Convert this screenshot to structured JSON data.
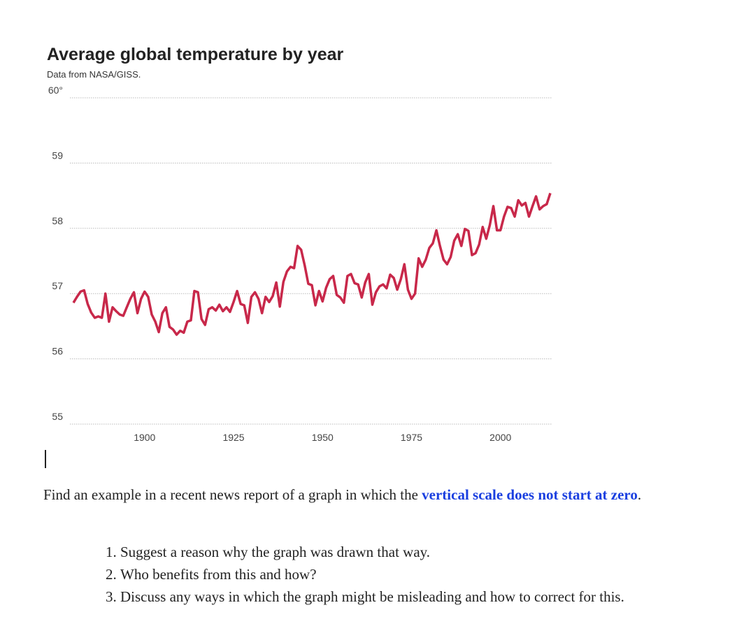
{
  "chart_data": {
    "type": "line",
    "title": "Average global temperature by year",
    "subtitle": "Data from NASA/GISS.",
    "ylim": [
      55,
      60
    ],
    "xlim": [
      1880,
      2014
    ],
    "yticks": [
      55,
      56,
      57,
      58,
      59,
      60
    ],
    "ytick_labels": [
      "55",
      "56",
      "57",
      "58",
      "59",
      "60°"
    ],
    "xticks": [
      1900,
      1925,
      1950,
      1975,
      2000
    ],
    "xtick_labels": [
      "1900",
      "1925",
      "1950",
      "1975",
      "2000"
    ],
    "grid": true,
    "line_color": "#c8284a",
    "x_start": 1880,
    "values": [
      56.86,
      56.95,
      57.03,
      57.05,
      56.84,
      56.71,
      56.63,
      56.65,
      56.63,
      57.0,
      56.57,
      56.79,
      56.73,
      56.68,
      56.66,
      56.79,
      56.92,
      57.02,
      56.7,
      56.92,
      57.03,
      56.95,
      56.68,
      56.57,
      56.41,
      56.7,
      56.79,
      56.49,
      56.45,
      56.37,
      56.43,
      56.4,
      56.57,
      56.59,
      57.04,
      57.02,
      56.61,
      56.52,
      56.76,
      56.79,
      56.74,
      56.83,
      56.73,
      56.79,
      56.72,
      56.87,
      57.04,
      56.84,
      56.82,
      56.55,
      56.95,
      57.02,
      56.92,
      56.7,
      56.95,
      56.87,
      56.96,
      57.17,
      56.8,
      57.18,
      57.34,
      57.41,
      57.39,
      57.73,
      57.67,
      57.43,
      57.15,
      57.13,
      56.82,
      57.04,
      56.88,
      57.09,
      57.22,
      57.27,
      56.98,
      56.94,
      56.86,
      57.27,
      57.3,
      57.16,
      57.14,
      56.94,
      57.17,
      57.3,
      56.83,
      57.02,
      57.11,
      57.14,
      57.08,
      57.29,
      57.24,
      57.06,
      57.22,
      57.45,
      57.06,
      56.92,
      57.0,
      57.54,
      57.41,
      57.52,
      57.7,
      57.77,
      57.97,
      57.73,
      57.52,
      57.45,
      57.56,
      57.81,
      57.91,
      57.73,
      57.99,
      57.96,
      57.59,
      57.62,
      57.75,
      58.02,
      57.84,
      58.05,
      58.34,
      57.97,
      57.97,
      58.18,
      58.33,
      58.31,
      58.18,
      58.43,
      58.35,
      58.39,
      58.18,
      58.34,
      58.49,
      58.29,
      58.34,
      58.37,
      58.54
    ]
  },
  "question": {
    "prefix": "Find an example in a recent news report of a graph in which the ",
    "highlight": "vertical scale does not start at zero",
    "suffix": ".",
    "items": [
      "Suggest a reason why the graph was drawn that way.",
      "Who benefits from this and how?",
      "Discuss any ways in which the graph might be misleading and how to correct for this."
    ]
  }
}
